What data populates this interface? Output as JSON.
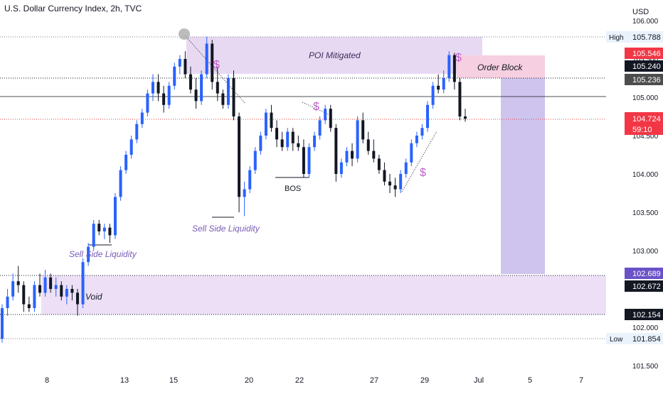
{
  "header": {
    "title": "U.S. Dollar Currency Index, 2h, TVC",
    "currency": "USD"
  },
  "chart_data": {
    "type": "candlestick",
    "title": "U.S. Dollar Currency Index, 2h, TVC",
    "y_axis": {
      "ticks": [
        "106.000",
        "105.500",
        "105.000",
        "104.500",
        "104.000",
        "103.500",
        "103.000",
        "102.500",
        "102.000",
        "101.500"
      ],
      "ylim": [
        101.5,
        106.0
      ]
    },
    "x_axis": {
      "ticks": [
        "8",
        "13",
        "15",
        "20",
        "22",
        "27",
        "29",
        "Jul",
        "5",
        "7"
      ]
    },
    "price_labels": {
      "high_label": "High",
      "high_value": "105.788",
      "poi_top": "105.546",
      "last_price": "105.240",
      "price_236": "105.236",
      "current": "104.724",
      "countdown": "59:10",
      "target": "102.689",
      "price_672": "102.672",
      "price_154": "102.154",
      "low_label": "Low",
      "low_value": "101.854"
    },
    "annotations": {
      "poi": "POI Mitigated",
      "order_block": "Order Block",
      "void": "Void",
      "bos": "BOS",
      "ssl_left": "Sell Side Liquidity",
      "ssl_mid": "Sell Side Liquidity",
      "dollar": "$"
    },
    "candles": [
      [
        101.85,
        102.3,
        101.8,
        102.25
      ],
      [
        102.25,
        102.5,
        102.15,
        102.4
      ],
      [
        102.4,
        102.7,
        102.35,
        102.6
      ],
      [
        102.6,
        102.8,
        102.45,
        102.55
      ],
      [
        102.55,
        102.6,
        102.2,
        102.3
      ],
      [
        102.3,
        102.4,
        102.2,
        102.25
      ],
      [
        102.25,
        102.6,
        102.2,
        102.55
      ],
      [
        102.55,
        102.7,
        102.4,
        102.45
      ],
      [
        102.45,
        102.75,
        102.4,
        102.65
      ],
      [
        102.65,
        102.7,
        102.45,
        102.5
      ],
      [
        102.5,
        102.65,
        102.4,
        102.55
      ],
      [
        102.55,
        102.6,
        102.35,
        102.4
      ],
      [
        102.4,
        102.55,
        102.3,
        102.5
      ],
      [
        102.5,
        102.55,
        102.35,
        102.45
      ],
      [
        102.45,
        102.5,
        102.15,
        102.3
      ],
      [
        102.3,
        102.9,
        102.25,
        102.85
      ],
      [
        102.85,
        103.1,
        102.8,
        103.05
      ],
      [
        103.05,
        103.4,
        103.0,
        103.35
      ],
      [
        103.35,
        103.4,
        103.2,
        103.25
      ],
      [
        103.25,
        103.35,
        103.15,
        103.3
      ],
      [
        103.3,
        103.35,
        103.1,
        103.2
      ],
      [
        103.2,
        103.75,
        103.15,
        103.7
      ],
      [
        103.7,
        104.1,
        103.65,
        104.05
      ],
      [
        104.05,
        104.3,
        104.0,
        104.25
      ],
      [
        104.25,
        104.5,
        104.2,
        104.45
      ],
      [
        104.45,
        104.7,
        104.4,
        104.65
      ],
      [
        104.65,
        104.85,
        104.6,
        104.8
      ],
      [
        104.8,
        105.1,
        104.75,
        105.05
      ],
      [
        105.05,
        105.3,
        104.95,
        105.2
      ],
      [
        105.2,
        105.3,
        104.95,
        105.05
      ],
      [
        105.05,
        105.15,
        104.8,
        104.9
      ],
      [
        104.9,
        105.2,
        104.85,
        105.15
      ],
      [
        105.15,
        105.45,
        105.1,
        105.4
      ],
      [
        105.4,
        105.55,
        105.3,
        105.5
      ],
      [
        105.5,
        105.6,
        105.25,
        105.3
      ],
      [
        105.3,
        105.4,
        105.05,
        105.1
      ],
      [
        105.1,
        105.25,
        104.85,
        104.95
      ],
      [
        104.95,
        105.35,
        104.9,
        105.3
      ],
      [
        105.3,
        105.79,
        105.25,
        105.7
      ],
      [
        105.7,
        105.75,
        105.1,
        105.2
      ],
      [
        105.2,
        105.4,
        104.95,
        105.05
      ],
      [
        105.05,
        105.1,
        104.85,
        104.9
      ],
      [
        104.9,
        105.3,
        104.85,
        105.25
      ],
      [
        105.25,
        105.35,
        104.7,
        104.75
      ],
      [
        104.75,
        104.8,
        103.5,
        103.7
      ],
      [
        103.7,
        103.9,
        103.45,
        103.8
      ],
      [
        103.8,
        104.1,
        103.75,
        104.05
      ],
      [
        104.05,
        104.35,
        104.0,
        104.3
      ],
      [
        104.3,
        104.55,
        104.25,
        104.5
      ],
      [
        104.5,
        104.85,
        104.45,
        104.8
      ],
      [
        104.8,
        104.9,
        104.55,
        104.6
      ],
      [
        104.6,
        104.7,
        104.35,
        104.45
      ],
      [
        104.45,
        104.55,
        104.3,
        104.35
      ],
      [
        104.35,
        104.6,
        104.3,
        104.55
      ],
      [
        104.55,
        104.6,
        104.3,
        104.4
      ],
      [
        104.4,
        104.5,
        104.3,
        104.35
      ],
      [
        104.35,
        104.45,
        103.95,
        104.0
      ],
      [
        104.0,
        104.4,
        103.95,
        104.35
      ],
      [
        104.35,
        104.55,
        104.3,
        104.5
      ],
      [
        104.5,
        104.75,
        104.45,
        104.7
      ],
      [
        104.7,
        104.9,
        104.65,
        104.85
      ],
      [
        104.85,
        104.9,
        104.55,
        104.6
      ],
      [
        104.6,
        104.65,
        103.9,
        104.0
      ],
      [
        104.0,
        104.2,
        103.95,
        104.15
      ],
      [
        104.15,
        104.35,
        104.1,
        104.3
      ],
      [
        104.3,
        104.4,
        104.1,
        104.2
      ],
      [
        104.2,
        104.75,
        104.15,
        104.7
      ],
      [
        104.7,
        104.8,
        104.4,
        104.45
      ],
      [
        104.45,
        104.55,
        104.25,
        104.3
      ],
      [
        104.3,
        104.45,
        104.15,
        104.2
      ],
      [
        104.2,
        104.25,
        104.0,
        104.05
      ],
      [
        104.05,
        104.15,
        103.85,
        103.9
      ],
      [
        103.9,
        104.0,
        103.75,
        103.85
      ],
      [
        103.85,
        103.95,
        103.7,
        103.8
      ],
      [
        103.8,
        104.05,
        103.75,
        104.0
      ],
      [
        104.0,
        104.2,
        103.95,
        104.15
      ],
      [
        104.15,
        104.45,
        104.1,
        104.4
      ],
      [
        104.4,
        104.55,
        104.35,
        104.5
      ],
      [
        104.5,
        104.65,
        104.45,
        104.6
      ],
      [
        104.6,
        104.95,
        104.55,
        104.9
      ],
      [
        104.9,
        105.2,
        104.85,
        105.15
      ],
      [
        105.15,
        105.3,
        105.05,
        105.1
      ],
      [
        105.1,
        105.35,
        105.05,
        105.25
      ],
      [
        105.25,
        105.6,
        105.2,
        105.55
      ],
      [
        105.55,
        105.58,
        105.1,
        105.2
      ],
      [
        105.2,
        105.25,
        104.7,
        104.75
      ],
      [
        104.75,
        104.85,
        104.68,
        104.72
      ]
    ],
    "colors": {
      "up": "#2962ff",
      "down": "#131722",
      "zone": "#e6d9f3",
      "ob": "#f6cfe0",
      "target": "#cfc4ee"
    }
  }
}
